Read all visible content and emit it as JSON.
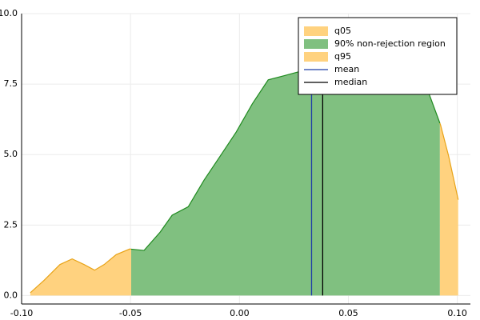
{
  "chart_data": {
    "type": "density",
    "x": [
      -0.096,
      -0.0897,
      -0.0824,
      -0.0768,
      -0.0713,
      -0.0665,
      -0.0621,
      -0.0566,
      -0.0504,
      -0.0438,
      -0.0364,
      -0.0309,
      -0.0235,
      -0.0162,
      -0.0088,
      -0.0015,
      0.0059,
      0.0132,
      0.0206,
      0.0279,
      0.0353,
      0.0426,
      0.0518,
      0.0574,
      0.0647,
      0.0739,
      0.0812,
      0.0868,
      0.0923,
      0.096,
      0.1004
    ],
    "values": [
      0.1,
      0.54,
      1.1,
      1.3,
      1.1,
      0.9,
      1.1,
      1.45,
      1.65,
      1.6,
      2.25,
      2.85,
      3.15,
      4.1,
      4.95,
      5.8,
      6.8,
      7.65,
      7.8,
      7.95,
      8.35,
      8.9,
      9.6,
      9.85,
      9.35,
      8.5,
      7.95,
      7.2,
      6.05,
      4.95,
      3.4
    ],
    "regions": [
      {
        "name": "q05",
        "color": "#ffd27f",
        "edge": "#e8a317",
        "from": -0.096,
        "to": -0.0497
      },
      {
        "name": "90% non-rejection region",
        "color": "#80c080",
        "edge": "#1f8a1f",
        "from": -0.0497,
        "to": 0.092
      },
      {
        "name": "q95",
        "color": "#ffd27f",
        "edge": "#e8a317",
        "from": 0.092,
        "to": 0.1004
      }
    ],
    "lines": [
      {
        "name": "mean",
        "color": "#1f3fa8",
        "x": 0.0331
      },
      {
        "name": "median",
        "color": "#000000",
        "x": 0.0382
      }
    ],
    "xlim": [
      -0.1,
      0.106
    ],
    "ylim": [
      -0.3,
      10.0
    ],
    "xticks": [
      {
        "value": -0.1,
        "label": "-0.10"
      },
      {
        "value": -0.05,
        "label": "-0.05"
      },
      {
        "value": 0,
        "label": "0.00"
      },
      {
        "value": 0.05,
        "label": "0.05"
      },
      {
        "value": 0.1,
        "label": "0.10"
      }
    ],
    "yticks": [
      {
        "value": 0,
        "label": "0.0"
      },
      2.5,
      {
        "value": 5,
        "label": "5.0"
      },
      7.5,
      {
        "value": 10,
        "label": "10.0"
      }
    ],
    "grid": true,
    "legend": "top-right"
  }
}
